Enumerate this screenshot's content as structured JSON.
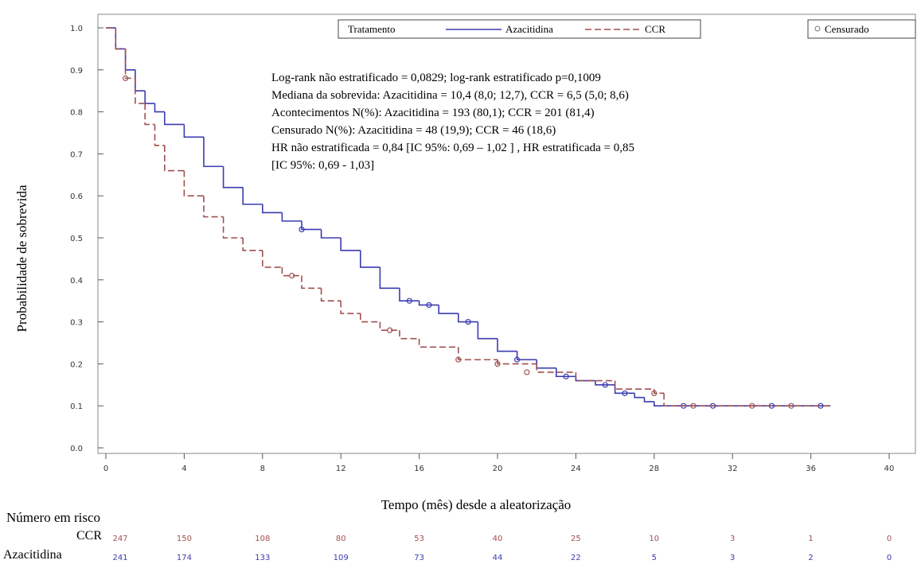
{
  "chart_data": {
    "type": "step",
    "y_label": "Probabilidade de sobrevida",
    "x_label": "Tempo (mês) desde a aleatorização",
    "xlim": [
      0,
      40
    ],
    "xticks": [
      0,
      4,
      8,
      12,
      16,
      20,
      24,
      28,
      32,
      36,
      40
    ],
    "ylim": [
      0,
      1
    ],
    "yticks": [
      {
        "value": 0,
        "label": "0.0"
      },
      0.1,
      0.2,
      0.3,
      0.4,
      0.5,
      0.6,
      0.7,
      0.8,
      0.9,
      {
        "value": 1,
        "label": "1.0"
      }
    ],
    "legend_title": "Tratamento",
    "censored_label": "Censurado",
    "annotations": [
      "Log-rank não estratificado = 0,0829; log-rank estratificado p=0,1009",
      "Mediana da sobrevida: Azacitidina = 10,4 (8,0; 12,7), CCR = 6,5 (5,0; 8,6)",
      "Acontecimentos N(%): Azacitidina = 193 (80,1); CCR = 201 (81,4)",
      "Censurado N(%): Azacitidina = 48 (19,9); CCR = 46 (18,6)",
      "HR não estratificada = 0,84 [IC 95%: 0,69 – 1,02 ] , HR estratificada = 0,85",
      "[IC 95%: 0,69 - 1,03]"
    ],
    "series": [
      {
        "name": "Azacitidina",
        "color": "#3b3bb0",
        "dash": false,
        "x": [
          0,
          0.5,
          1,
          1.5,
          2,
          2.5,
          3,
          4,
          5,
          6,
          7,
          8,
          9,
          10,
          11,
          12,
          13,
          14,
          15,
          16,
          17,
          18,
          19,
          20,
          21,
          22,
          23,
          24,
          25,
          26,
          27,
          27.5,
          28,
          37
        ],
        "values": [
          1.0,
          0.95,
          0.9,
          0.85,
          0.82,
          0.8,
          0.77,
          0.74,
          0.67,
          0.62,
          0.58,
          0.56,
          0.54,
          0.52,
          0.5,
          0.47,
          0.43,
          0.38,
          0.35,
          0.34,
          0.32,
          0.3,
          0.26,
          0.23,
          0.21,
          0.19,
          0.17,
          0.16,
          0.15,
          0.13,
          0.12,
          0.11,
          0.1,
          0.1
        ],
        "censored_x": [
          10,
          15.5,
          16.5,
          18.5,
          21,
          23.5,
          25.5,
          26.5,
          29.5,
          31,
          34,
          36.5
        ],
        "censored_values": [
          0.52,
          0.35,
          0.34,
          0.3,
          0.21,
          0.17,
          0.15,
          0.13,
          0.1,
          0.1,
          0.1,
          0.1
        ],
        "risk": [
          241,
          174,
          133,
          109,
          73,
          44,
          22,
          5,
          3,
          2,
          0
        ]
      },
      {
        "name": "CCR",
        "color": "#a05050",
        "dash": true,
        "x": [
          0,
          0.5,
          1,
          1.5,
          2,
          2.5,
          3,
          4,
          5,
          6,
          7,
          8,
          9,
          10,
          11,
          12,
          13,
          14,
          15,
          16,
          18,
          20,
          22,
          24,
          26,
          28,
          28.5,
          37
        ],
        "values": [
          1.0,
          0.95,
          0.88,
          0.82,
          0.77,
          0.72,
          0.66,
          0.6,
          0.55,
          0.5,
          0.47,
          0.43,
          0.41,
          0.38,
          0.35,
          0.32,
          0.3,
          0.28,
          0.26,
          0.24,
          0.21,
          0.2,
          0.18,
          0.16,
          0.14,
          0.13,
          0.1,
          0.1
        ],
        "censored_x": [
          1,
          9.5,
          14.5,
          18,
          20,
          21.5,
          28,
          30,
          33,
          35
        ],
        "censored_values": [
          0.88,
          0.41,
          0.28,
          0.21,
          0.2,
          0.18,
          0.13,
          0.1,
          0.1,
          0.1
        ],
        "risk": [
          247,
          150,
          108,
          80,
          53,
          40,
          25,
          10,
          3,
          1,
          0
        ]
      }
    ],
    "risk_table_title": "Número em risco"
  }
}
